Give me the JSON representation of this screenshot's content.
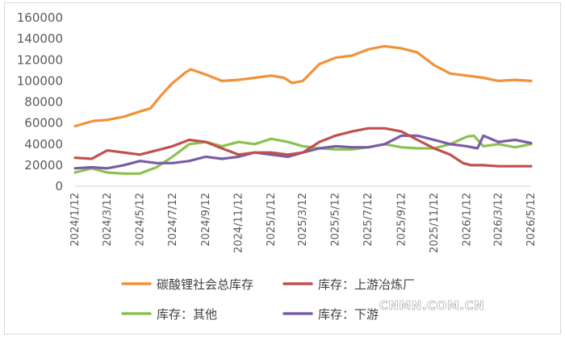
{
  "chart_data": {
    "type": "line",
    "ylim": [
      0,
      160000
    ],
    "yticks": [
      0,
      20000,
      40000,
      60000,
      80000,
      100000,
      120000,
      140000,
      160000
    ],
    "xlabels": [
      "2024/1/12",
      "2024/3/12",
      "2024/5/12",
      "2024/7/12",
      "2024/9/12",
      "2024/11/12",
      "2025/1/12",
      "2025/3/12",
      "2025/5/12",
      "2025/7/12",
      "2025/9/12",
      "2025/11/12",
      "2026/1/12",
      "2026/3/12",
      "2026/5/12"
    ],
    "x_start": "2024/1/12",
    "x_end": "2026/5/12",
    "grid": false,
    "legend_position": "bottom",
    "series": [
      {
        "name": "碳酸锂社会总库存",
        "color": "#F0923A",
        "points": [
          [
            "2024/1/12",
            57000
          ],
          [
            "2024/2/15",
            62000
          ],
          [
            "2024/3/12",
            63000
          ],
          [
            "2024/4/12",
            66000
          ],
          [
            "2024/5/12",
            71000
          ],
          [
            "2024/6/1",
            74000
          ],
          [
            "2024/6/20",
            86000
          ],
          [
            "2024/7/12",
            98000
          ],
          [
            "2024/8/5",
            108000
          ],
          [
            "2024/8/15",
            111000
          ],
          [
            "2024/9/12",
            106000
          ],
          [
            "2024/10/12",
            100000
          ],
          [
            "2024/11/12",
            101000
          ],
          [
            "2024/12/12",
            103000
          ],
          [
            "2025/1/12",
            105000
          ],
          [
            "2025/2/5",
            103000
          ],
          [
            "2025/2/20",
            98000
          ],
          [
            "2025/3/12",
            100000
          ],
          [
            "2025/4/12",
            116000
          ],
          [
            "2025/5/12",
            122000
          ],
          [
            "2025/6/12",
            124000
          ],
          [
            "2025/7/12",
            130000
          ],
          [
            "2025/8/12",
            133000
          ],
          [
            "2025/9/12",
            131000
          ],
          [
            "2025/10/12",
            127000
          ],
          [
            "2025/11/12",
            115000
          ],
          [
            "2025/12/12",
            107000
          ],
          [
            "2026/1/12",
            105000
          ],
          [
            "2026/2/12",
            103000
          ],
          [
            "2026/3/12",
            100000
          ],
          [
            "2026/4/12",
            101000
          ],
          [
            "2026/5/12",
            100000
          ]
        ]
      },
      {
        "name": "库存：上游冶炼厂",
        "color": "#C0504D",
        "points": [
          [
            "2024/1/12",
            27000
          ],
          [
            "2024/2/12",
            26000
          ],
          [
            "2024/3/12",
            34000
          ],
          [
            "2024/4/12",
            32000
          ],
          [
            "2024/5/12",
            30000
          ],
          [
            "2024/6/12",
            34000
          ],
          [
            "2024/7/12",
            38000
          ],
          [
            "2024/8/12",
            44000
          ],
          [
            "2024/9/12",
            42000
          ],
          [
            "2024/10/12",
            36000
          ],
          [
            "2024/11/12",
            30000
          ],
          [
            "2024/12/12",
            32000
          ],
          [
            "2025/1/12",
            32000
          ],
          [
            "2025/2/12",
            30000
          ],
          [
            "2025/3/12",
            32000
          ],
          [
            "2025/4/12",
            42000
          ],
          [
            "2025/5/12",
            48000
          ],
          [
            "2025/6/12",
            52000
          ],
          [
            "2025/7/12",
            55000
          ],
          [
            "2025/8/12",
            55000
          ],
          [
            "2025/9/12",
            52000
          ],
          [
            "2025/10/12",
            44000
          ],
          [
            "2025/11/12",
            36000
          ],
          [
            "2025/12/12",
            30000
          ],
          [
            "2026/1/5",
            22000
          ],
          [
            "2026/1/20",
            20000
          ],
          [
            "2026/2/12",
            20000
          ],
          [
            "2026/3/12",
            19000
          ],
          [
            "2026/4/12",
            19000
          ],
          [
            "2026/5/12",
            19000
          ]
        ]
      },
      {
        "name": "库存：其他",
        "color": "#8CC152",
        "points": [
          [
            "2024/1/12",
            13000
          ],
          [
            "2024/2/12",
            17000
          ],
          [
            "2024/3/12",
            13000
          ],
          [
            "2024/4/12",
            12000
          ],
          [
            "2024/5/12",
            12000
          ],
          [
            "2024/6/12",
            18000
          ],
          [
            "2024/7/12",
            28000
          ],
          [
            "2024/8/12",
            40000
          ],
          [
            "2024/9/12",
            42000
          ],
          [
            "2024/10/12",
            38000
          ],
          [
            "2024/11/12",
            42000
          ],
          [
            "2024/12/12",
            40000
          ],
          [
            "2025/1/12",
            45000
          ],
          [
            "2025/2/12",
            42000
          ],
          [
            "2025/3/12",
            38000
          ],
          [
            "2025/4/12",
            36000
          ],
          [
            "2025/5/12",
            35000
          ],
          [
            "2025/6/12",
            35000
          ],
          [
            "2025/7/12",
            37000
          ],
          [
            "2025/8/12",
            40000
          ],
          [
            "2025/9/12",
            37000
          ],
          [
            "2025/10/12",
            36000
          ],
          [
            "2025/11/12",
            36000
          ],
          [
            "2025/12/12",
            40000
          ],
          [
            "2026/1/12",
            47000
          ],
          [
            "2026/1/25",
            48000
          ],
          [
            "2026/2/12",
            38000
          ],
          [
            "2026/3/12",
            40000
          ],
          [
            "2026/4/12",
            37000
          ],
          [
            "2026/5/12",
            40000
          ]
        ]
      },
      {
        "name": "库存：下游",
        "color": "#7B5BA6",
        "points": [
          [
            "2024/1/12",
            17000
          ],
          [
            "2024/2/12",
            18000
          ],
          [
            "2024/3/12",
            17000
          ],
          [
            "2024/4/12",
            20000
          ],
          [
            "2024/5/12",
            24000
          ],
          [
            "2024/6/12",
            22000
          ],
          [
            "2024/7/12",
            22000
          ],
          [
            "2024/8/12",
            24000
          ],
          [
            "2024/9/12",
            28000
          ],
          [
            "2024/10/12",
            26000
          ],
          [
            "2024/11/12",
            28000
          ],
          [
            "2024/12/12",
            32000
          ],
          [
            "2025/1/12",
            30000
          ],
          [
            "2025/2/12",
            28000
          ],
          [
            "2025/3/12",
            32000
          ],
          [
            "2025/4/12",
            36000
          ],
          [
            "2025/5/12",
            38000
          ],
          [
            "2025/6/12",
            37000
          ],
          [
            "2025/7/12",
            37000
          ],
          [
            "2025/8/12",
            40000
          ],
          [
            "2025/9/12",
            48000
          ],
          [
            "2025/10/12",
            48000
          ],
          [
            "2025/11/12",
            44000
          ],
          [
            "2025/12/12",
            40000
          ],
          [
            "2026/1/12",
            38000
          ],
          [
            "2026/2/1",
            36000
          ],
          [
            "2026/2/12",
            48000
          ],
          [
            "2026/3/12",
            42000
          ],
          [
            "2026/4/12",
            44000
          ],
          [
            "2026/5/12",
            41000
          ]
        ]
      }
    ]
  },
  "watermark": "CNMN.COM.CN"
}
